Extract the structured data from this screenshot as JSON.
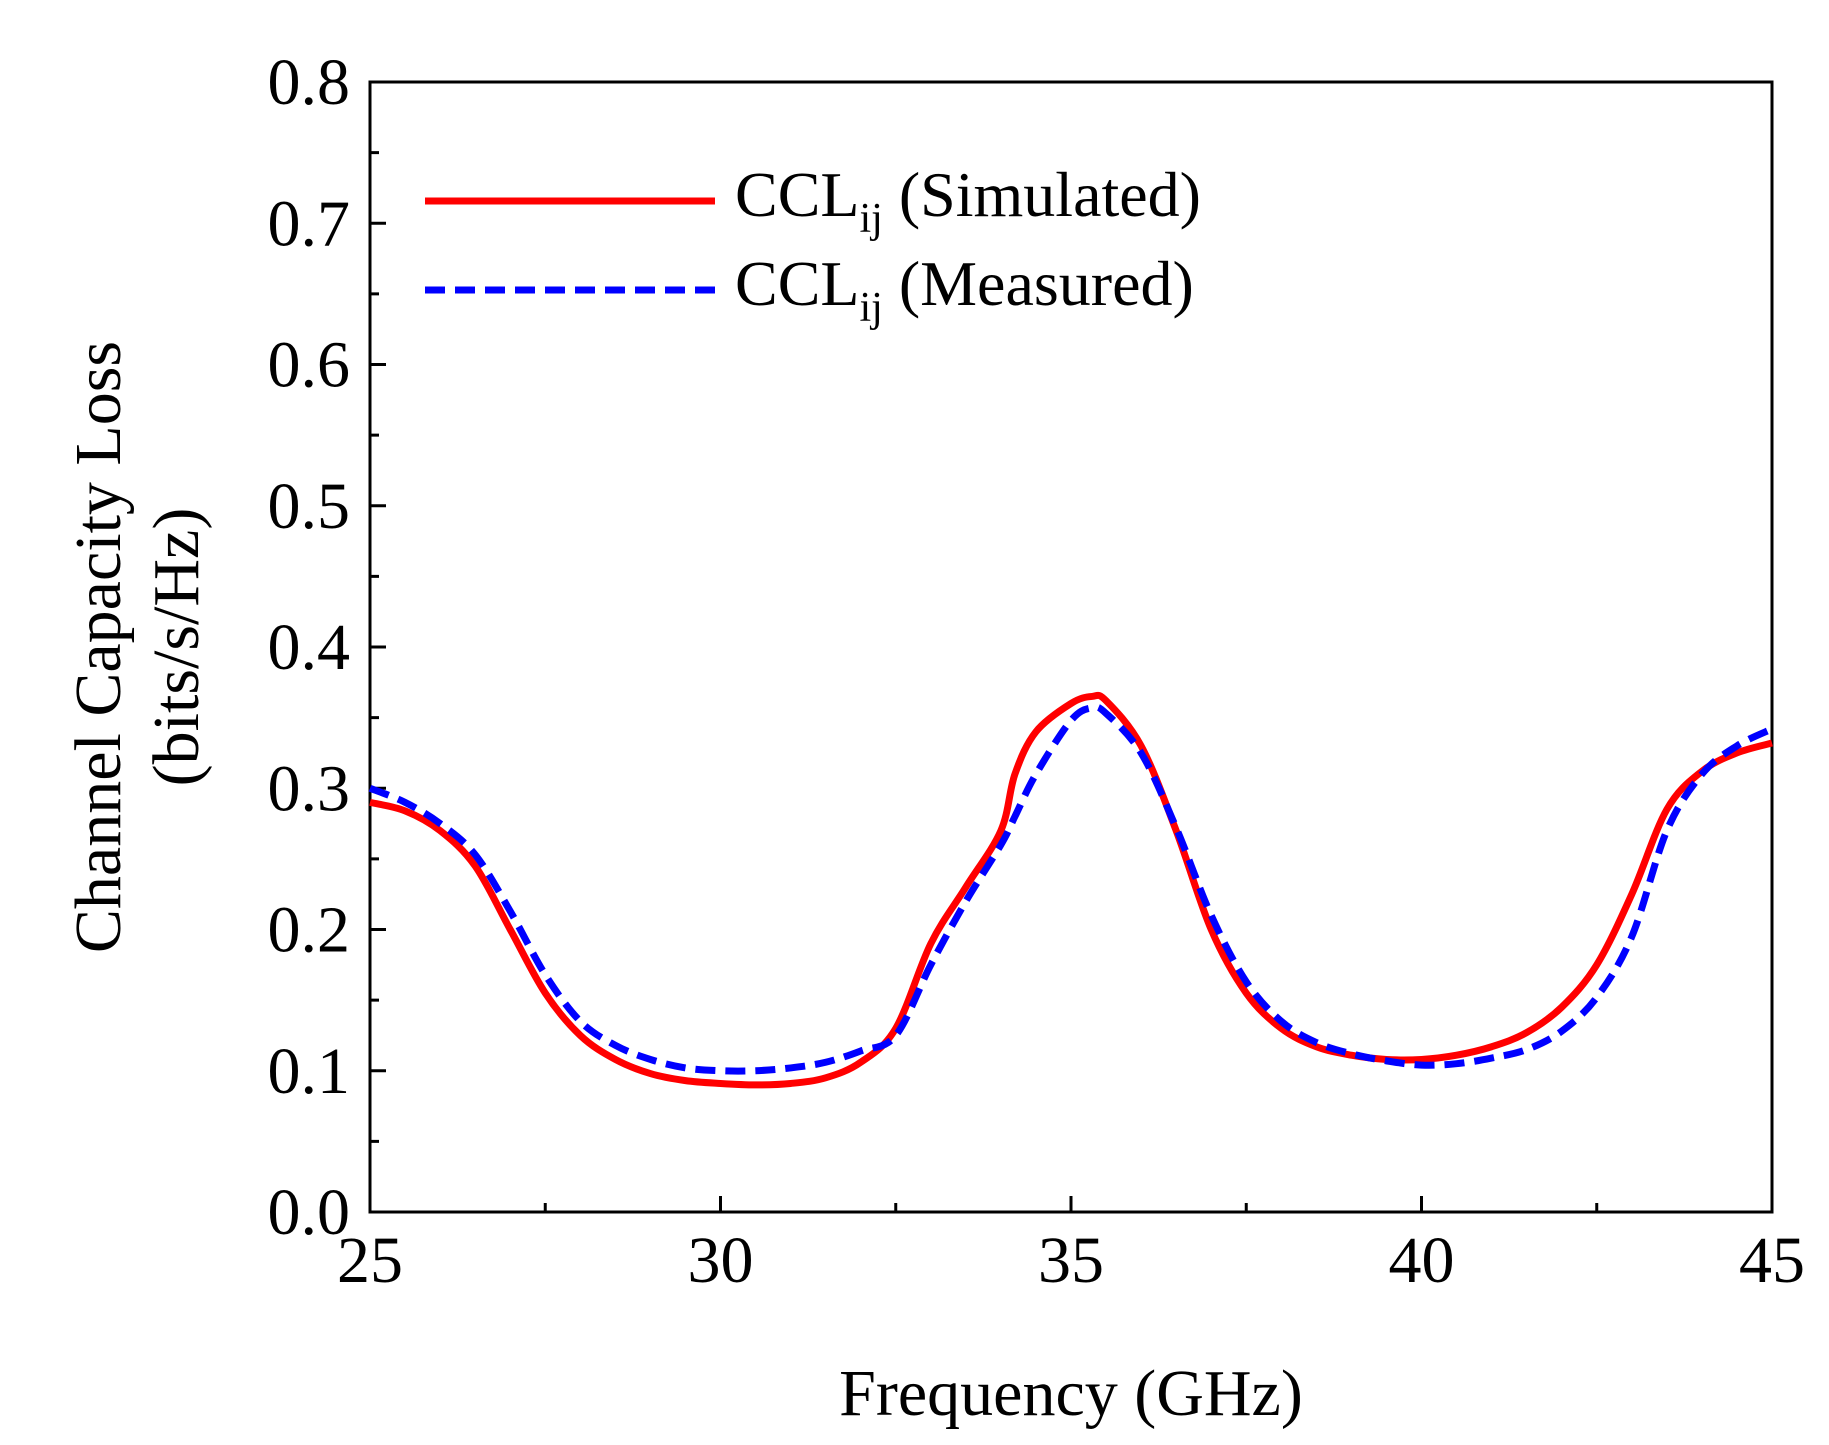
{
  "chart_data": {
    "type": "line",
    "xlabel": "Frequency (GHz)",
    "ylabel_line1": "Channel Capacity Loss",
    "ylabel_line2": "(bits/s/Hz)",
    "xlim": [
      25,
      45
    ],
    "ylim": [
      0.0,
      0.8
    ],
    "xticks": [
      "25",
      "30",
      "35",
      "40",
      "45"
    ],
    "yticks": [
      "0.0",
      "0.1",
      "0.2",
      "0.3",
      "0.4",
      "0.5",
      "0.6",
      "0.7",
      "0.8"
    ],
    "grid": false,
    "legend_position": "top-left",
    "series": [
      {
        "name": "CCL",
        "name_sub": "ij",
        "name_suffix": " (Simulated)",
        "color": "#ff0000",
        "dash": "solid",
        "x": [
          25,
          25.5,
          26,
          26.5,
          27,
          27.5,
          28,
          28.5,
          29,
          29.5,
          30,
          30.5,
          31,
          31.5,
          32,
          32.5,
          33,
          33.5,
          34,
          34.2,
          34.5,
          35,
          35.3,
          35.5,
          36,
          36.5,
          37,
          37.5,
          38,
          38.5,
          39,
          39.5,
          40,
          40.5,
          41,
          41.5,
          42,
          42.5,
          43,
          43.5,
          44,
          44.5,
          45
        ],
        "y": [
          0.29,
          0.284,
          0.27,
          0.245,
          0.2,
          0.155,
          0.125,
          0.108,
          0.098,
          0.093,
          0.091,
          0.09,
          0.091,
          0.095,
          0.106,
          0.13,
          0.19,
          0.23,
          0.27,
          0.31,
          0.34,
          0.36,
          0.365,
          0.362,
          0.33,
          0.27,
          0.2,
          0.155,
          0.13,
          0.117,
          0.111,
          0.108,
          0.108,
          0.111,
          0.117,
          0.127,
          0.145,
          0.175,
          0.225,
          0.285,
          0.312,
          0.325,
          0.332
        ]
      },
      {
        "name": "CCL",
        "name_sub": "ij",
        "name_suffix": " (Measured)",
        "color": "#0000ff",
        "dash": "dashed",
        "x": [
          25,
          25.5,
          26,
          26.5,
          27,
          27.5,
          28,
          28.5,
          29,
          29.5,
          30,
          30.5,
          31,
          31.5,
          32,
          32.5,
          33,
          33.5,
          34,
          34.2,
          34.5,
          35,
          35.3,
          35.5,
          36,
          36.5,
          37,
          37.5,
          38,
          38.5,
          39,
          39.5,
          40,
          40.5,
          41,
          41.5,
          42,
          42.5,
          43,
          43.5,
          44,
          44.5,
          45
        ],
        "y": [
          0.3,
          0.29,
          0.275,
          0.253,
          0.213,
          0.168,
          0.135,
          0.118,
          0.108,
          0.102,
          0.1,
          0.1,
          0.102,
          0.106,
          0.114,
          0.125,
          0.175,
          0.22,
          0.26,
          0.28,
          0.31,
          0.348,
          0.357,
          0.353,
          0.325,
          0.272,
          0.21,
          0.163,
          0.135,
          0.12,
          0.112,
          0.107,
          0.104,
          0.105,
          0.109,
          0.115,
          0.128,
          0.152,
          0.195,
          0.27,
          0.31,
          0.33,
          0.342
        ]
      }
    ]
  }
}
